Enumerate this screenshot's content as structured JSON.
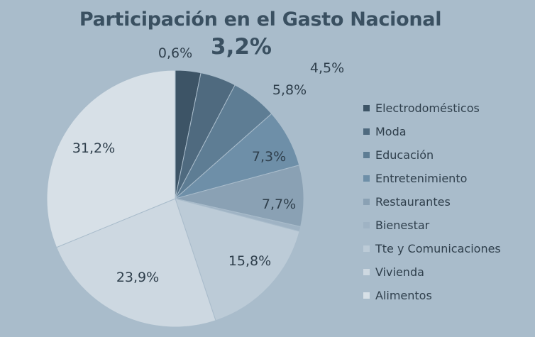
{
  "chart_data": {
    "type": "pie",
    "title": "Participación en el Gasto Nacional",
    "start_angle_deg": 0,
    "direction": "clockwise",
    "slices": [
      {
        "name": "Electrodomésticos",
        "value": 3.2,
        "label": "3,2%",
        "color": "#3d5466"
      },
      {
        "name": "Moda",
        "value": 4.5,
        "label": "4,5%",
        "color": "#4f6a7f"
      },
      {
        "name": "Educación",
        "value": 5.8,
        "label": "5,8%",
        "color": "#5e7d94"
      },
      {
        "name": "Entretenimiento",
        "value": 7.3,
        "label": "7,3%",
        "color": "#6e8fa8"
      },
      {
        "name": "Restaurantes",
        "value": 7.7,
        "label": "7,7%",
        "color": "#8aa1b4"
      },
      {
        "name": "Bienestar",
        "value": 0.6,
        "label": "0,6%",
        "color": "#9fb3c4"
      },
      {
        "name": "Tte y Comunicaciones",
        "value": 15.8,
        "label": "15,8%",
        "color": "#bccbd7"
      },
      {
        "name": "Vivienda",
        "value": 23.9,
        "label": "23,9%",
        "color": "#cdd8e1"
      },
      {
        "name": "Alimentos",
        "value": 31.2,
        "label": "31,2%",
        "color": "#d7e0e7"
      }
    ],
    "legend_position": "right"
  }
}
